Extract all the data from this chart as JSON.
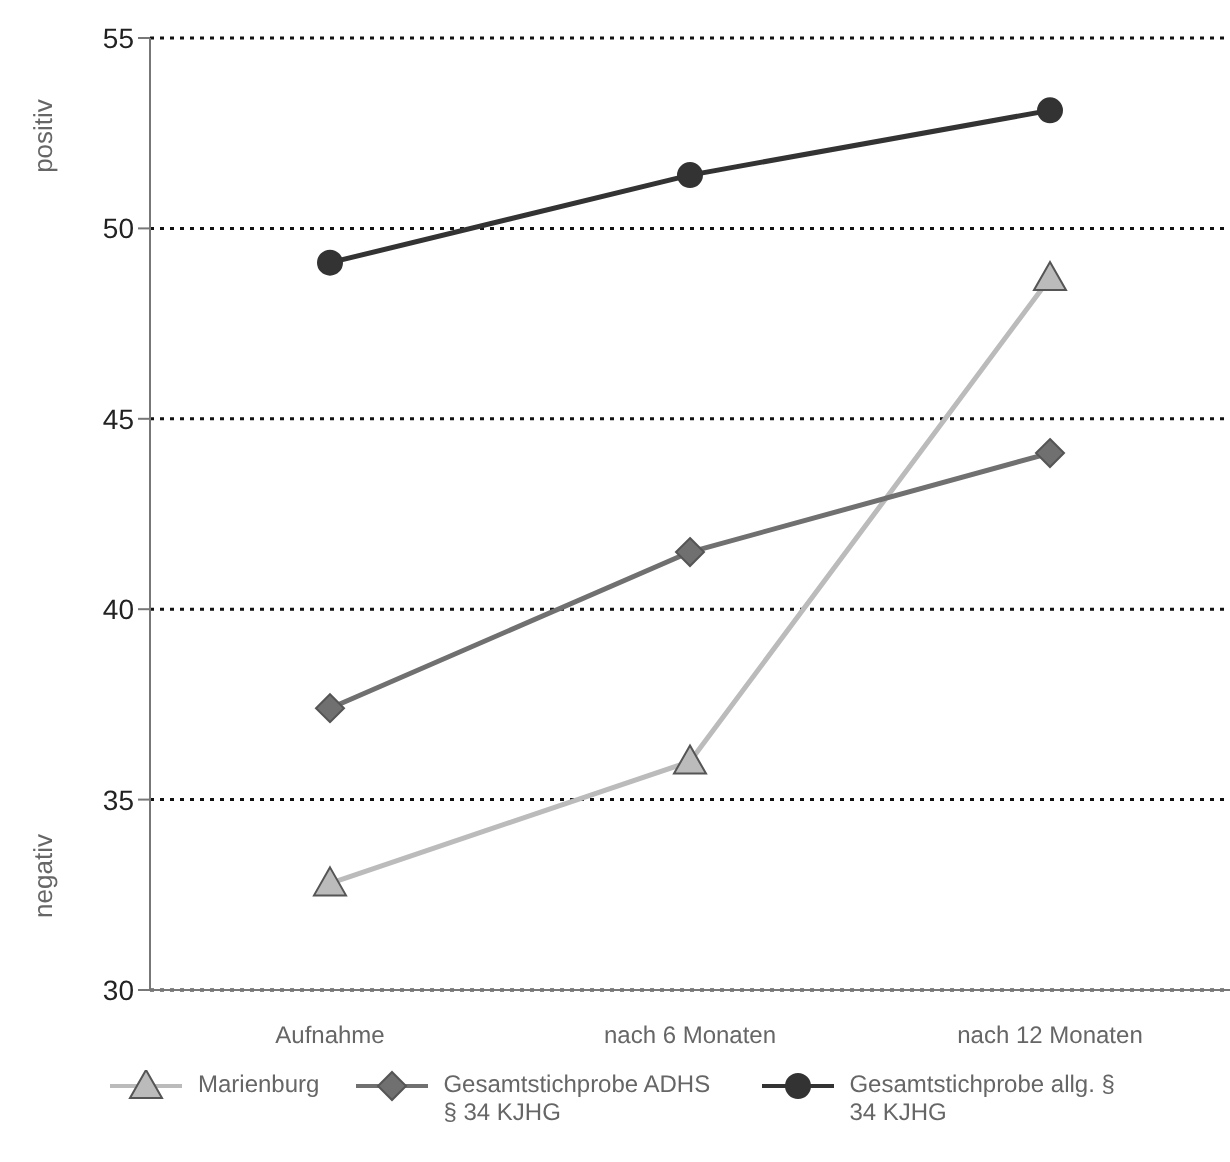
{
  "chart_data": {
    "type": "line",
    "categories": [
      "Aufnahme",
      "nach 6 Monaten",
      "nach 12 Monaten"
    ],
    "series": [
      {
        "name": "Marienburg",
        "color": "#bbbbbb",
        "marker": "triangle",
        "values": [
          32.8,
          36.0,
          48.7
        ]
      },
      {
        "name": "Gesamtstichprobe ADHS § 34 KJHG",
        "color": "#707070",
        "marker": "diamond",
        "values": [
          37.4,
          41.5,
          44.1
        ]
      },
      {
        "name": "Gesamtstichprobe allg. § 34 KJHG",
        "color": "#333333",
        "marker": "circle",
        "values": [
          49.1,
          51.4,
          53.1
        ]
      }
    ],
    "ylim": [
      30,
      55
    ],
    "yticks": [
      30,
      35,
      40,
      45,
      50,
      55
    ],
    "grid": "y",
    "legend": "bottom",
    "line_style": "solid",
    "annotations": [
      "positiv",
      "negativ"
    ]
  }
}
